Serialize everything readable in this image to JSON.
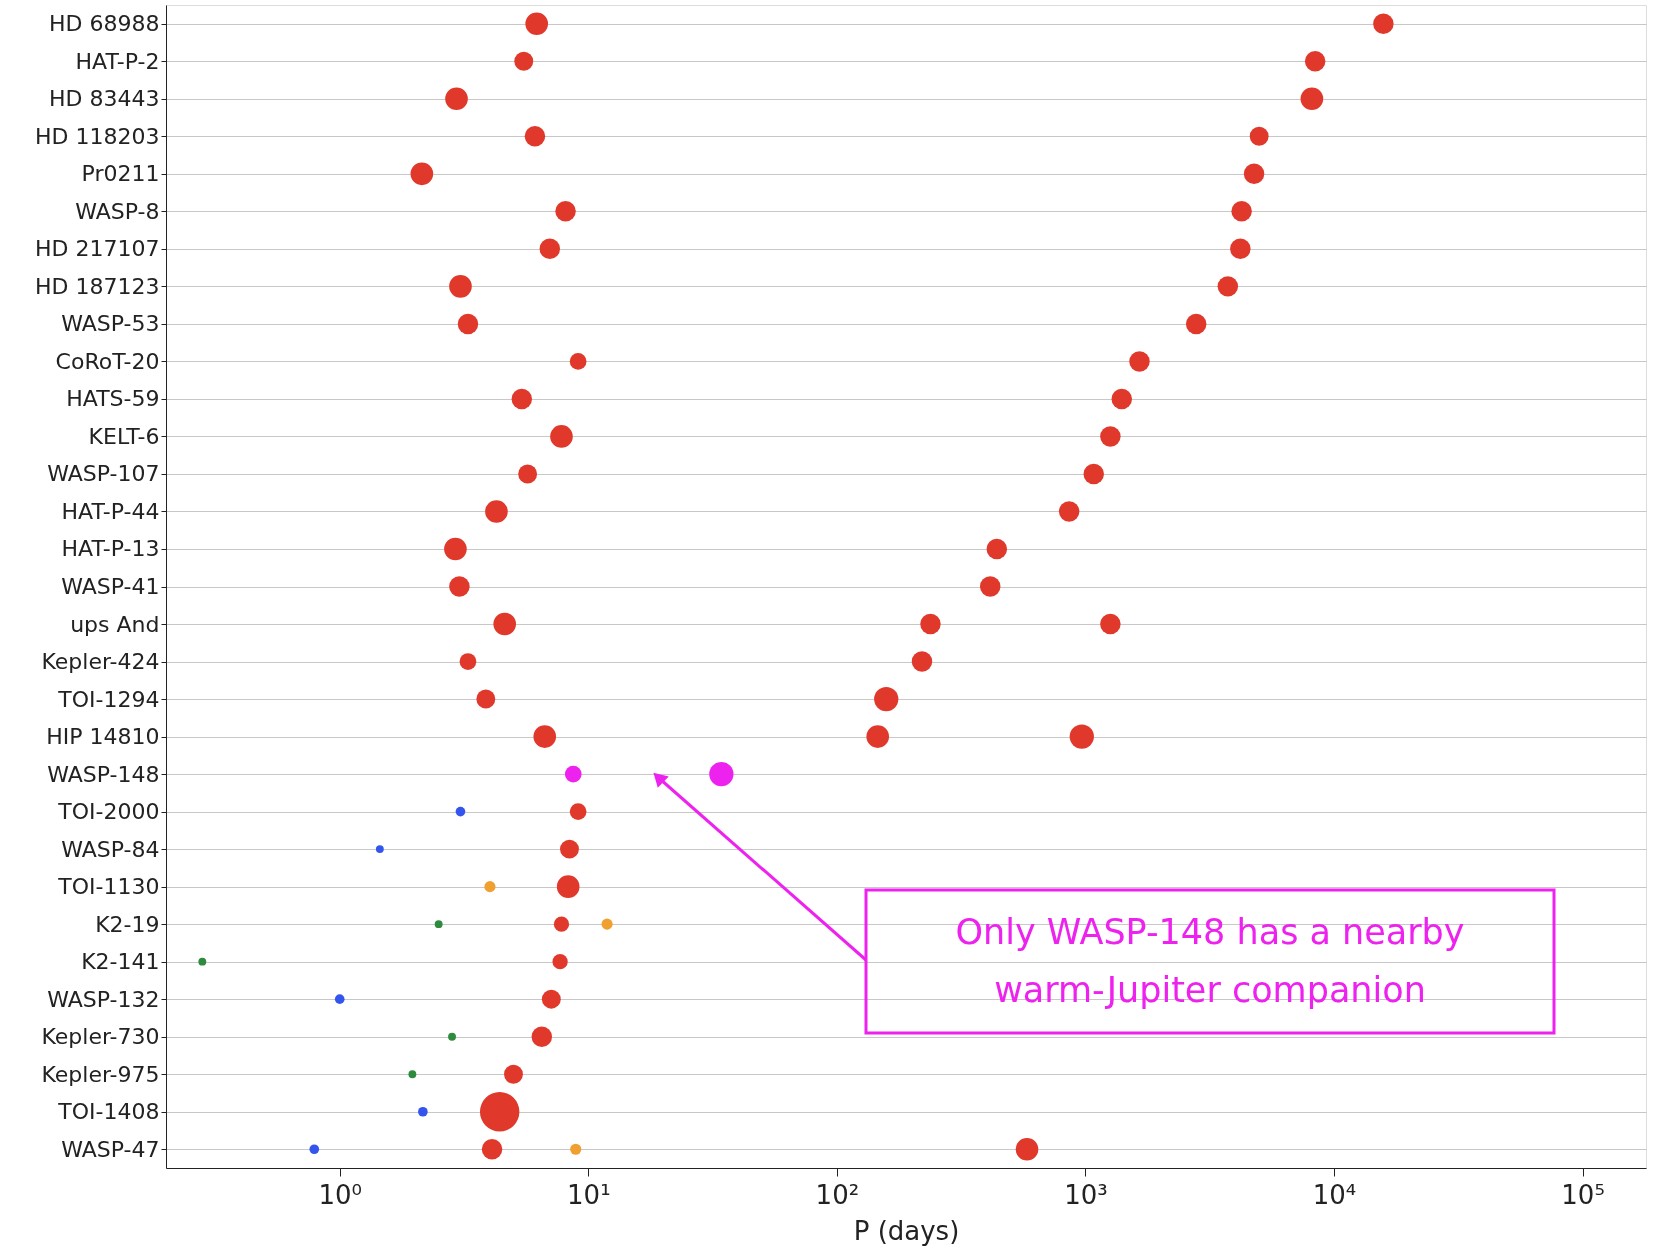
{
  "chart_data": {
    "type": "bubble",
    "orientation": "horizontal",
    "xlabel": "P (days)",
    "categories": [
      "HD 68988",
      "HAT-P-2",
      "HD 83443",
      "HD 118203",
      "Pr0211",
      "WASP-8",
      "HD 217107",
      "HD 187123",
      "WASP-53",
      "CoRoT-20",
      "HATS-59",
      "KELT-6",
      "WASP-107",
      "HAT-P-44",
      "HAT-P-13",
      "WASP-41",
      "ups And",
      "Kepler-424",
      "TOI-1294",
      "HIP 14810",
      "WASP-148",
      "TOI-2000",
      "WASP-84",
      "TOI-1130",
      "K2-19",
      "K2-141",
      "WASP-132",
      "Kepler-730",
      "Kepler-975",
      "TOI-1408",
      "WASP-47"
    ],
    "series": [
      {
        "color": "#e0392b",
        "values": [
          6.2,
          5.5,
          2.95,
          6.1,
          2.14,
          8.1,
          7.0,
          3.06,
          3.28,
          9.1,
          5.4,
          7.8,
          5.7,
          4.27,
          2.92,
          3.03,
          4.61,
          3.28,
          3.87,
          6.68,
          null,
          9.1,
          8.4,
          8.3,
          7.8,
          7.7,
          7.1,
          6.5,
          5.0,
          4.4,
          4.1
        ],
        "sizes": [
          0.33,
          0.23,
          0.33,
          0.27,
          0.33,
          0.27,
          0.27,
          0.33,
          0.27,
          0.18,
          0.27,
          0.33,
          0.23,
          0.33,
          0.33,
          0.27,
          0.33,
          0.18,
          0.23,
          0.33,
          null,
          0.18,
          0.23,
          0.33,
          0.15,
          0.15,
          0.23,
          0.27,
          0.23,
          1,
          0.27
        ]
      },
      {
        "color": "#e0392b",
        "values": [
          15800,
          8400,
          8150,
          5000,
          4770,
          4250,
          4200,
          3740,
          2790,
          1650,
          1400,
          1260,
          1080,
          860,
          440,
          414,
          238,
          220,
          158,
          146,
          null,
          null,
          null,
          null,
          null,
          null,
          null,
          null,
          null,
          null,
          582
        ],
        "sizes": [
          0.27,
          0.27,
          0.33,
          0.23,
          0.27,
          0.27,
          0.27,
          0.27,
          0.27,
          0.27,
          0.27,
          0.27,
          0.27,
          0.27,
          0.27,
          0.27,
          0.27,
          0.27,
          0.38,
          0.33,
          null,
          null,
          null,
          null,
          null,
          null,
          null,
          null,
          null,
          null,
          0.33
        ]
      },
      {
        "color": "#e0392b",
        "values": [
          null,
          null,
          null,
          null,
          null,
          null,
          null,
          null,
          null,
          null,
          null,
          null,
          null,
          null,
          null,
          null,
          1260,
          null,
          null,
          967,
          null,
          null,
          null,
          null,
          null,
          null,
          null,
          null,
          null,
          null,
          null
        ],
        "sizes": [
          null,
          null,
          null,
          null,
          null,
          null,
          null,
          null,
          null,
          null,
          null,
          null,
          null,
          null,
          null,
          null,
          0.27,
          null,
          null,
          0.38,
          null,
          null,
          null,
          null,
          null,
          null,
          null,
          null,
          null,
          null,
          null
        ]
      },
      {
        "color": "#ee22ee",
        "values": [
          null,
          null,
          null,
          null,
          null,
          null,
          null,
          null,
          null,
          null,
          null,
          null,
          null,
          null,
          null,
          null,
          null,
          null,
          null,
          null,
          8.7,
          null,
          null,
          null,
          null,
          null,
          null,
          null,
          null,
          null,
          null
        ],
        "sizes": [
          null,
          null,
          null,
          null,
          null,
          null,
          null,
          null,
          null,
          null,
          null,
          null,
          null,
          null,
          null,
          null,
          null,
          null,
          null,
          null,
          0.18,
          null,
          null,
          null,
          null,
          null,
          null,
          null,
          null,
          null,
          null
        ]
      },
      {
        "color": "#ee22ee",
        "values": [
          null,
          null,
          null,
          null,
          null,
          null,
          null,
          null,
          null,
          null,
          null,
          null,
          null,
          null,
          null,
          null,
          null,
          null,
          null,
          null,
          34.3,
          null,
          null,
          null,
          null,
          null,
          null,
          null,
          null,
          null,
          null
        ],
        "sizes": [
          null,
          null,
          null,
          null,
          null,
          null,
          null,
          null,
          null,
          null,
          null,
          null,
          null,
          null,
          null,
          null,
          null,
          null,
          null,
          null,
          0.38,
          null,
          null,
          null,
          null,
          null,
          null,
          null,
          null,
          null,
          null
        ]
      },
      {
        "color": "#3355ee",
        "values": [
          null,
          null,
          null,
          null,
          null,
          null,
          null,
          null,
          null,
          null,
          null,
          null,
          null,
          null,
          null,
          null,
          null,
          null,
          null,
          null,
          null,
          3.06,
          1.45,
          null,
          null,
          null,
          1.0,
          null,
          null,
          2.16,
          0.79
        ],
        "sizes": [
          null,
          null,
          null,
          null,
          null,
          null,
          null,
          null,
          null,
          null,
          null,
          null,
          null,
          null,
          null,
          null,
          null,
          null,
          null,
          null,
          null,
          0.06,
          0.04,
          null,
          null,
          null,
          0.06,
          null,
          null,
          0.06,
          0.06
        ]
      },
      {
        "color": "#2e8b3e",
        "values": [
          null,
          null,
          null,
          null,
          null,
          null,
          null,
          null,
          null,
          null,
          null,
          null,
          null,
          null,
          null,
          null,
          null,
          null,
          null,
          null,
          null,
          null,
          null,
          null,
          2.5,
          0.28,
          null,
          2.83,
          1.96,
          null,
          null
        ],
        "sizes": [
          null,
          null,
          null,
          null,
          null,
          null,
          null,
          null,
          null,
          null,
          null,
          null,
          null,
          null,
          null,
          null,
          null,
          null,
          null,
          null,
          null,
          null,
          null,
          null,
          0.04,
          0.04,
          null,
          0.04,
          0.04,
          null,
          null
        ]
      },
      {
        "color": "#f0a030",
        "values": [
          null,
          null,
          null,
          null,
          null,
          null,
          null,
          null,
          null,
          null,
          null,
          null,
          null,
          null,
          null,
          null,
          null,
          null,
          null,
          null,
          null,
          null,
          null,
          4.02,
          11.9,
          null,
          null,
          null,
          null,
          null,
          8.9
        ],
        "sizes": [
          null,
          null,
          null,
          null,
          null,
          null,
          null,
          null,
          null,
          null,
          null,
          null,
          null,
          null,
          null,
          null,
          null,
          null,
          null,
          null,
          null,
          null,
          null,
          0.08,
          0.08,
          null,
          null,
          null,
          null,
          null,
          0.08
        ]
      }
    ],
    "log": "x",
    "xlim": [
      0.2,
      180000
    ],
    "xticks": [
      {
        "value": 1,
        "label": "10⁰"
      },
      {
        "value": 10,
        "label": "10¹"
      },
      {
        "value": 100,
        "label": "10²"
      },
      {
        "value": 1000,
        "label": "10³"
      },
      {
        "value": 10000,
        "label": "10⁴"
      },
      {
        "value": 100000,
        "label": "10⁵"
      }
    ],
    "grid": "y",
    "annotations": [
      "Only WASP-148 has a nearby warm-Jupiter companion"
    ]
  }
}
